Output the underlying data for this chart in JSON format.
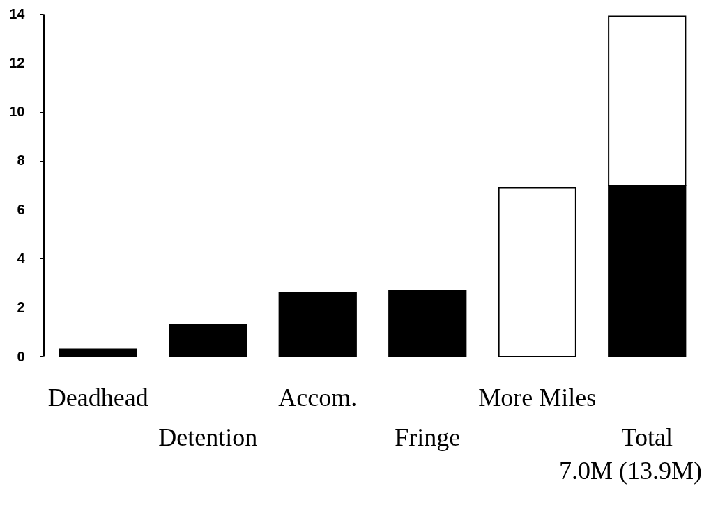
{
  "chart_data": {
    "type": "bar",
    "categories": [
      "Deadhead",
      "Detention",
      "Accom.",
      "Fringe",
      "More Miles",
      "Total"
    ],
    "series": [
      {
        "color": "#000000",
        "values": [
          0.3,
          1.3,
          2.6,
          2.7,
          null,
          7.0
        ]
      },
      {
        "color": "#ffffff",
        "values": [
          null,
          null,
          null,
          null,
          6.9,
          6.9
        ]
      }
    ],
    "stacked": true,
    "ylim": [
      0,
      14
    ],
    "yticks": [
      0,
      2,
      4,
      6,
      8,
      10,
      12,
      14
    ],
    "grid": false,
    "annotations": [
      "7.0M (13.9M)"
    ]
  }
}
